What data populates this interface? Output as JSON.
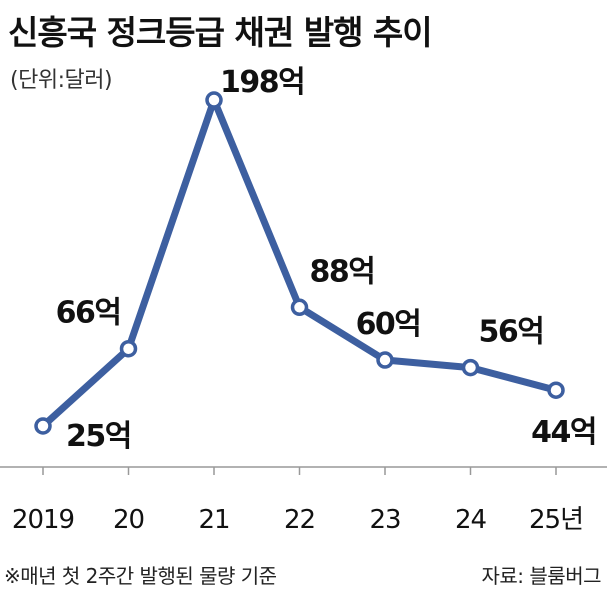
{
  "title": "신흥국 정크등급 채권 발행 추이",
  "unit": "(단위:달러)",
  "footnote": "※매년 첫 2주간 발행된 물량 기준",
  "source": "자료: 블룸버그",
  "colors": {
    "line": "#3d5fa0",
    "marker_fill": "#ffffff",
    "axis": "#999999",
    "text": "#111111"
  },
  "chart_data": {
    "type": "line",
    "title": "신흥국 정크등급 채권 발행 추이",
    "xlabel": "",
    "ylabel": "",
    "categories": [
      "2019",
      "20",
      "21",
      "22",
      "23",
      "24",
      "25년"
    ],
    "values": [
      25,
      66,
      198,
      88,
      60,
      56,
      44
    ],
    "data_labels": [
      "25억",
      "66억",
      "198억",
      "88억",
      "60억",
      "56억",
      "44억"
    ],
    "ylim": [
      0,
      200
    ],
    "grid": false
  }
}
